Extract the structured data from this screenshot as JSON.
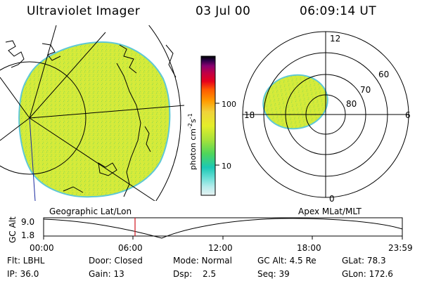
{
  "header": {
    "instrument": "Ultraviolet Imager",
    "date": "03 Jul 00",
    "time": "06:09:14 UT"
  },
  "colors": {
    "image_fill": "#cde83a",
    "image_edge": "#48c8c8"
  },
  "colorbar": {
    "unit_label": "photon cm",
    "unit_exp1": "-2",
    "unit_mid": "s",
    "unit_exp2": "-1",
    "tick_100": "100",
    "tick_10": "10",
    "stops": [
      "#e6f2f2",
      "#6fe0d8",
      "#1bc8b5",
      "#4fd65a",
      "#a8e23a",
      "#e4ee2a",
      "#f0d23a",
      "#ff9a00",
      "#ff5a00",
      "#e6001c",
      "#c00046",
      "#880070",
      "#2a0046",
      "#000000"
    ]
  },
  "polar": {
    "mlt_12": "12",
    "mlt_18": "18",
    "mlt_6": "6",
    "mlt_0": "0",
    "lat_60": "60",
    "lat_70": "70",
    "lat_80": "80"
  },
  "labels": {
    "left": "Geographic Lat/Lon",
    "right": "Apex MLat/MLT"
  },
  "timeline": {
    "ylabel": "GC Alt",
    "y_top": "9.0",
    "y_bot": "1.8",
    "ticks": [
      "00:00",
      "06:00",
      "12:00",
      "18:00",
      "23:59"
    ],
    "marker_time": "06:09"
  },
  "info": {
    "flt": "Flt: LBHL",
    "door": "Door: Closed",
    "mode": "Mode: Normal",
    "gcalt": "GC Alt: 4.5 Re",
    "glat": "GLat: 78.3",
    "ip": "IP: 36.0",
    "gain": "Gain: 13",
    "dsp_label": "Dsp:",
    "dsp_val": "2.5",
    "seq": "Seq: 39",
    "glon": "GLon: 172.6"
  }
}
